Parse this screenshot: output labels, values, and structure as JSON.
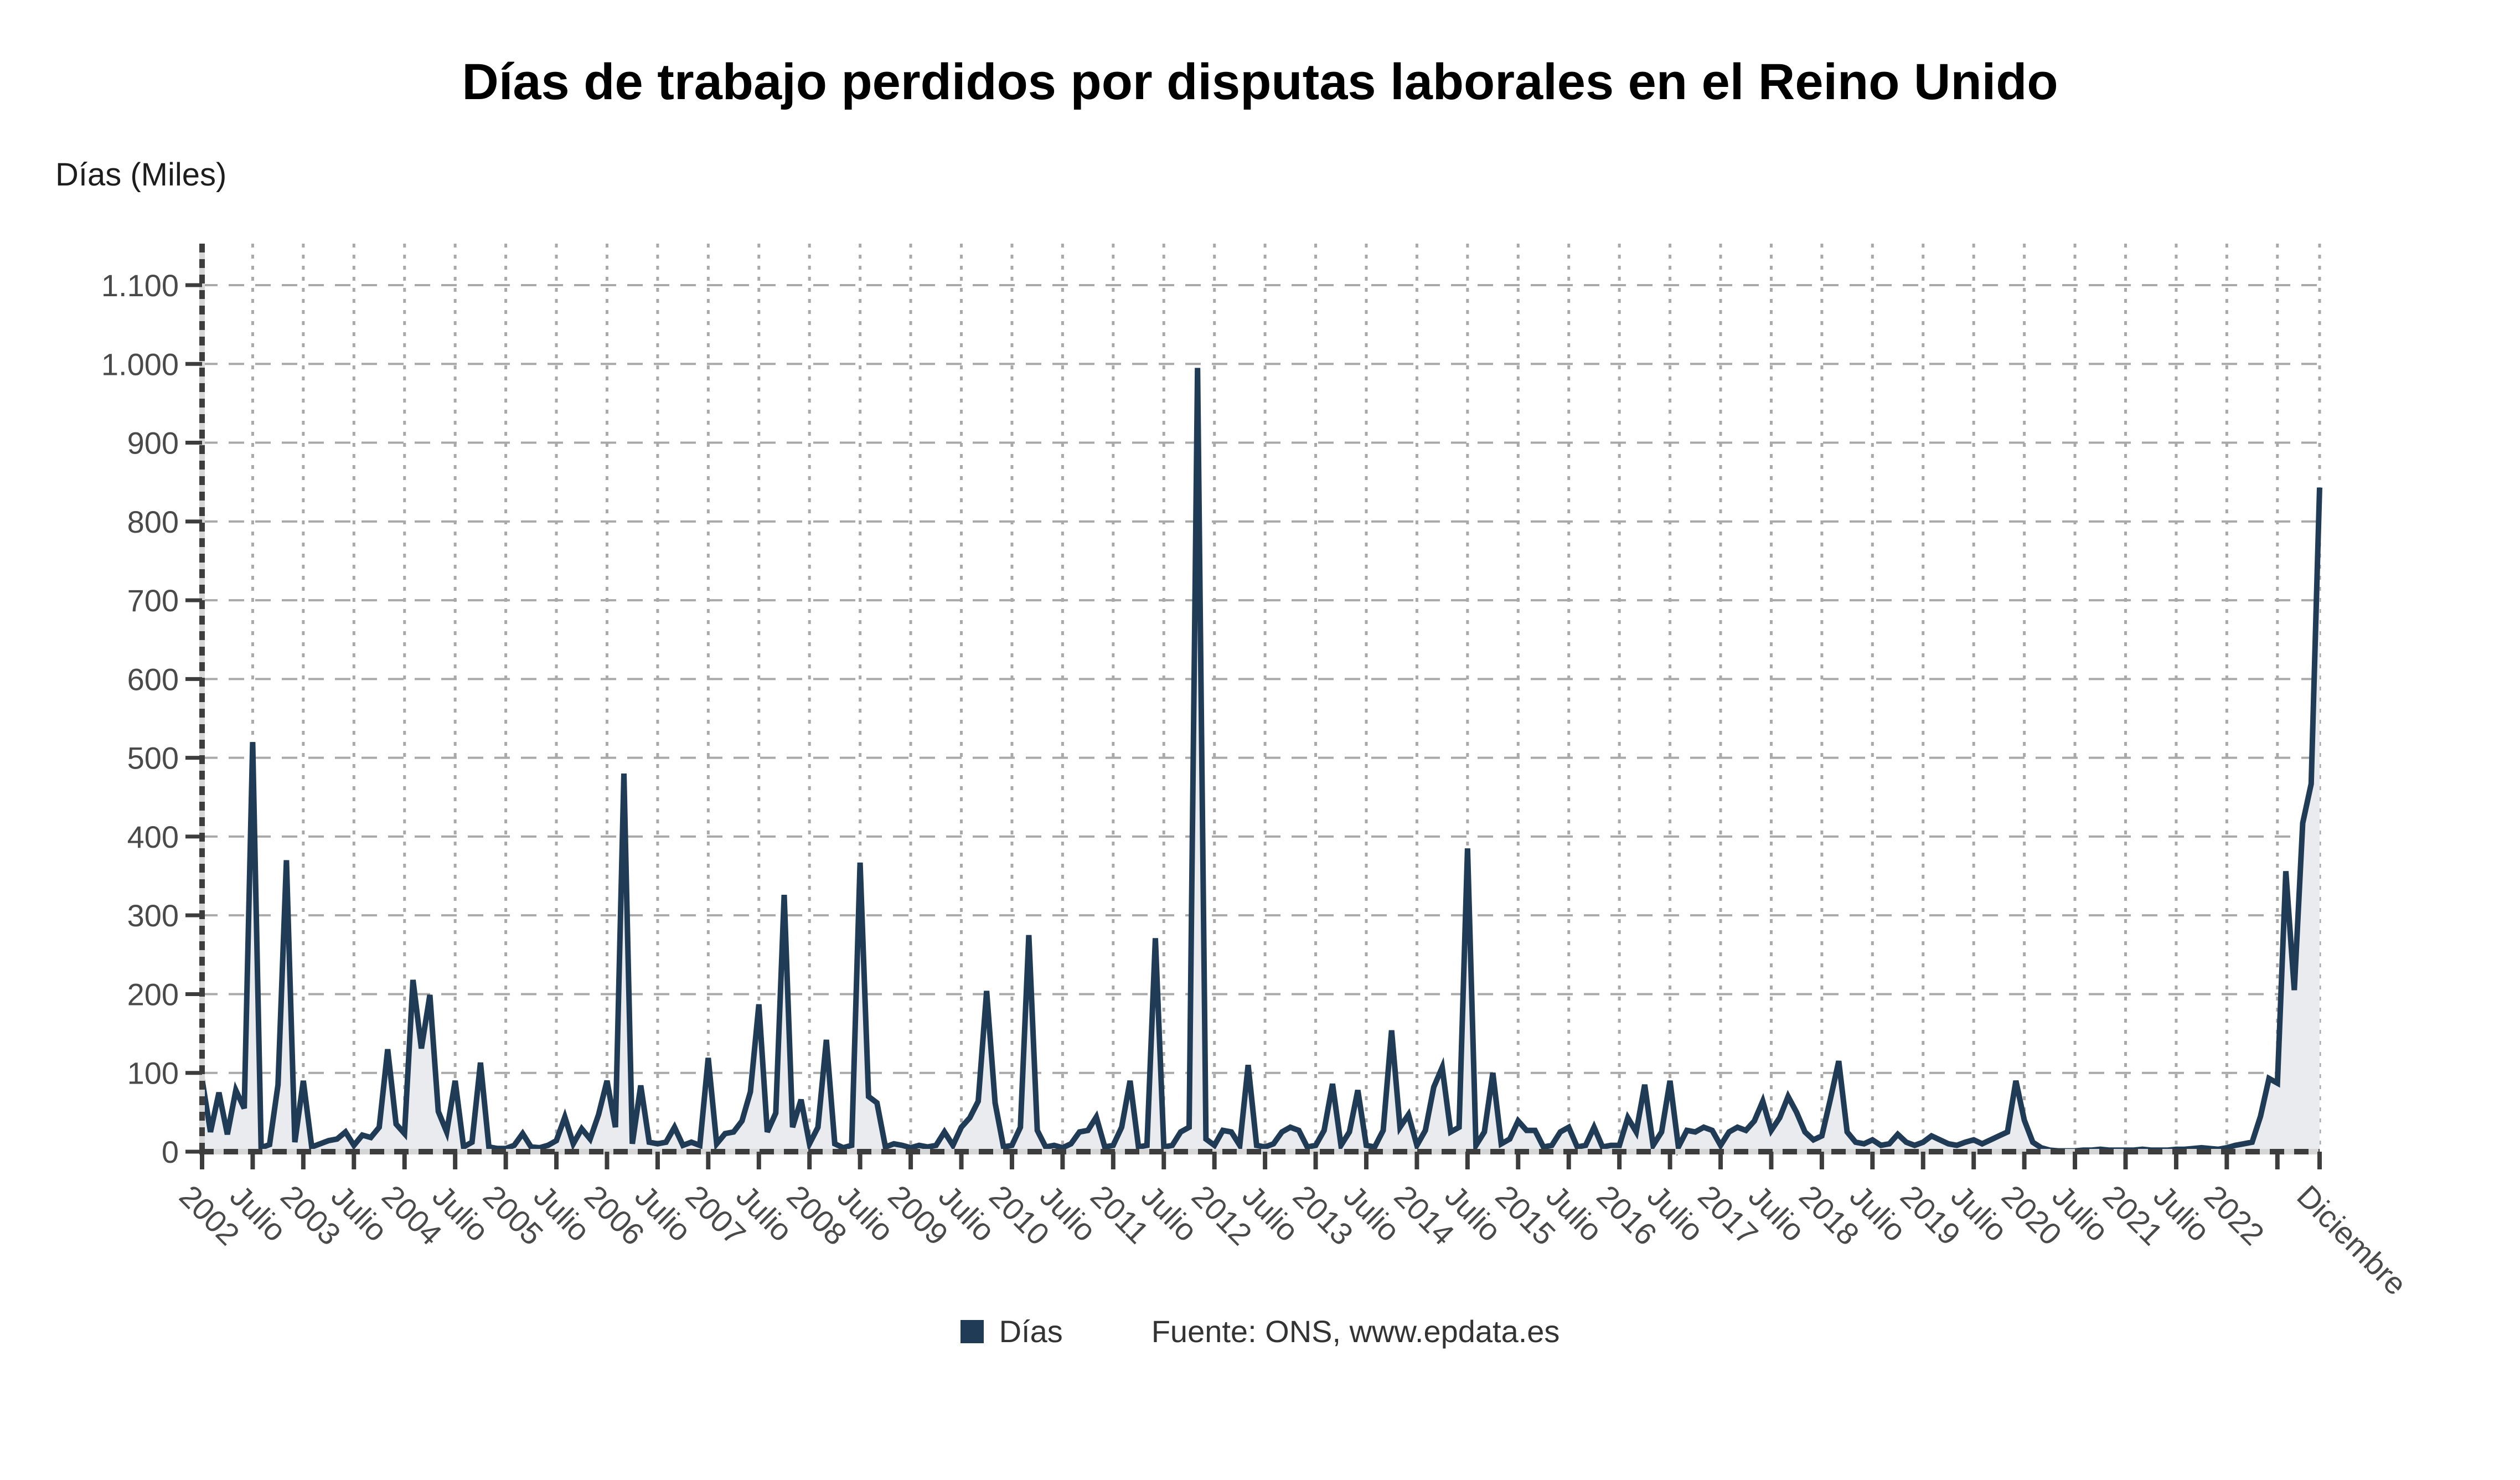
{
  "title": "Días de trabajo perdidos por disputas laborales en el Reino Unido",
  "y_axis_label": "Días (Miles)",
  "legend": {
    "series_label": "Días",
    "source_label": "Fuente: ONS, www.epdata.es",
    "swatch_color": "#203b55"
  },
  "colors": {
    "line": "#203b55",
    "area_fill": "#e9ebee",
    "grid": "#a9a9a9",
    "axis_dark": "#3d3d3d",
    "axis_light": "#d6d6d6",
    "tick_text": "#4a4a4a",
    "background": "#ffffff"
  },
  "chart_data": {
    "type": "area",
    "title": "Días de trabajo perdidos por disputas laborales en el Reino Unido",
    "xlabel": "",
    "ylabel": "Días (Miles)",
    "x_range": "Enero 2002 - Diciembre 2022 (mensual)",
    "ylim": [
      0,
      1150
    ],
    "grid": true,
    "legend_position": "bottom-center",
    "y_ticks": [
      {
        "v": 0,
        "label": "0"
      },
      {
        "v": 100,
        "label": "100"
      },
      {
        "v": 200,
        "label": "200"
      },
      {
        "v": 300,
        "label": "300"
      },
      {
        "v": 400,
        "label": "400"
      },
      {
        "v": 500,
        "label": "500"
      },
      {
        "v": 600,
        "label": "600"
      },
      {
        "v": 700,
        "label": "700"
      },
      {
        "v": 800,
        "label": "800"
      },
      {
        "v": 900,
        "label": "900"
      },
      {
        "v": 1000,
        "label": "1.000"
      },
      {
        "v": 1100,
        "label": "1.100"
      }
    ],
    "x_ticks": [
      {
        "m": 0,
        "label": "2002"
      },
      {
        "m": 6,
        "label": "Julio"
      },
      {
        "m": 12,
        "label": "2003"
      },
      {
        "m": 18,
        "label": "Julio"
      },
      {
        "m": 24,
        "label": "2004"
      },
      {
        "m": 30,
        "label": "Julio"
      },
      {
        "m": 36,
        "label": "2005"
      },
      {
        "m": 42,
        "label": "Julio"
      },
      {
        "m": 48,
        "label": "2006"
      },
      {
        "m": 54,
        "label": "Julio"
      },
      {
        "m": 60,
        "label": "2007"
      },
      {
        "m": 66,
        "label": "Julio"
      },
      {
        "m": 72,
        "label": "2008"
      },
      {
        "m": 78,
        "label": "Julio"
      },
      {
        "m": 84,
        "label": "2009"
      },
      {
        "m": 90,
        "label": "Julio"
      },
      {
        "m": 96,
        "label": "2010"
      },
      {
        "m": 102,
        "label": "Julio"
      },
      {
        "m": 108,
        "label": "2011"
      },
      {
        "m": 114,
        "label": "Julio"
      },
      {
        "m": 120,
        "label": "2012"
      },
      {
        "m": 126,
        "label": "Julio"
      },
      {
        "m": 132,
        "label": "2013"
      },
      {
        "m": 138,
        "label": "Julio"
      },
      {
        "m": 144,
        "label": "2014"
      },
      {
        "m": 150,
        "label": "Julio"
      },
      {
        "m": 156,
        "label": "2015"
      },
      {
        "m": 162,
        "label": "Julio"
      },
      {
        "m": 168,
        "label": "2016"
      },
      {
        "m": 174,
        "label": "Julio"
      },
      {
        "m": 180,
        "label": "2017"
      },
      {
        "m": 186,
        "label": "Julio"
      },
      {
        "m": 192,
        "label": "2018"
      },
      {
        "m": 198,
        "label": "Julio"
      },
      {
        "m": 204,
        "label": "2019"
      },
      {
        "m": 210,
        "label": "Julio"
      },
      {
        "m": 216,
        "label": "2020"
      },
      {
        "m": 222,
        "label": "Julio"
      },
      {
        "m": 228,
        "label": "2021"
      },
      {
        "m": 234,
        "label": "Julio"
      },
      {
        "m": 240,
        "label": "2022"
      },
      {
        "m": 251,
        "label": "Diciembre"
      }
    ],
    "extra_gridline_months": [
      246
    ],
    "series": [
      {
        "name": "Días",
        "color": "#203b55",
        "fill": "#e9ebee",
        "start": "2002-01",
        "end": "2022-12",
        "values": [
          92,
          25,
          75,
          22,
          78,
          55,
          520,
          5,
          9,
          85,
          370,
          12,
          90,
          6,
          10,
          14,
          16,
          25,
          8,
          21,
          18,
          31,
          130,
          35,
          23,
          218,
          131,
          199,
          51,
          25,
          90,
          6,
          12,
          113,
          6,
          4,
          4,
          8,
          23,
          6,
          5,
          8,
          14,
          44,
          10,
          29,
          16,
          47,
          90,
          31,
          480,
          10,
          84,
          12,
          10,
          12,
          31,
          8,
          12,
          8,
          119,
          10,
          23,
          25,
          39,
          76,
          187,
          25,
          49,
          326,
          31,
          66,
          10,
          31,
          142,
          10,
          5,
          8,
          367,
          70,
          62,
          6,
          10,
          8,
          5,
          8,
          6,
          8,
          25,
          8,
          31,
          43,
          64,
          204,
          62,
          6,
          8,
          31,
          275,
          27,
          6,
          8,
          5,
          10,
          25,
          27,
          44,
          6,
          8,
          31,
          90,
          6,
          8,
          271,
          6,
          8,
          25,
          31,
          995,
          16,
          8,
          27,
          25,
          8,
          110,
          8,
          6,
          10,
          25,
          31,
          27,
          6,
          8,
          27,
          86,
          8,
          25,
          78,
          8,
          6,
          27,
          154,
          31,
          47,
          8,
          27,
          82,
          107,
          25,
          31,
          385,
          8,
          25,
          100,
          10,
          16,
          39,
          27,
          27,
          6,
          8,
          25,
          31,
          6,
          8,
          31,
          6,
          8,
          8,
          43,
          25,
          85,
          8,
          25,
          90,
          6,
          27,
          25,
          31,
          27,
          8,
          25,
          31,
          27,
          39,
          64,
          27,
          43,
          70,
          50,
          25,
          15,
          20,
          66,
          115,
          25,
          12,
          10,
          15,
          8,
          10,
          22,
          12,
          8,
          12,
          20,
          15,
          10,
          8,
          12,
          15,
          10,
          15,
          20,
          25,
          90,
          40,
          12,
          5,
          2,
          1,
          1,
          1,
          2,
          2,
          3,
          2,
          2,
          2,
          2,
          3,
          2,
          2,
          2,
          3,
          3,
          4,
          5,
          4,
          3,
          5,
          8,
          10,
          12,
          45,
          93,
          87,
          356,
          205,
          417,
          467,
          843
        ]
      }
    ]
  }
}
